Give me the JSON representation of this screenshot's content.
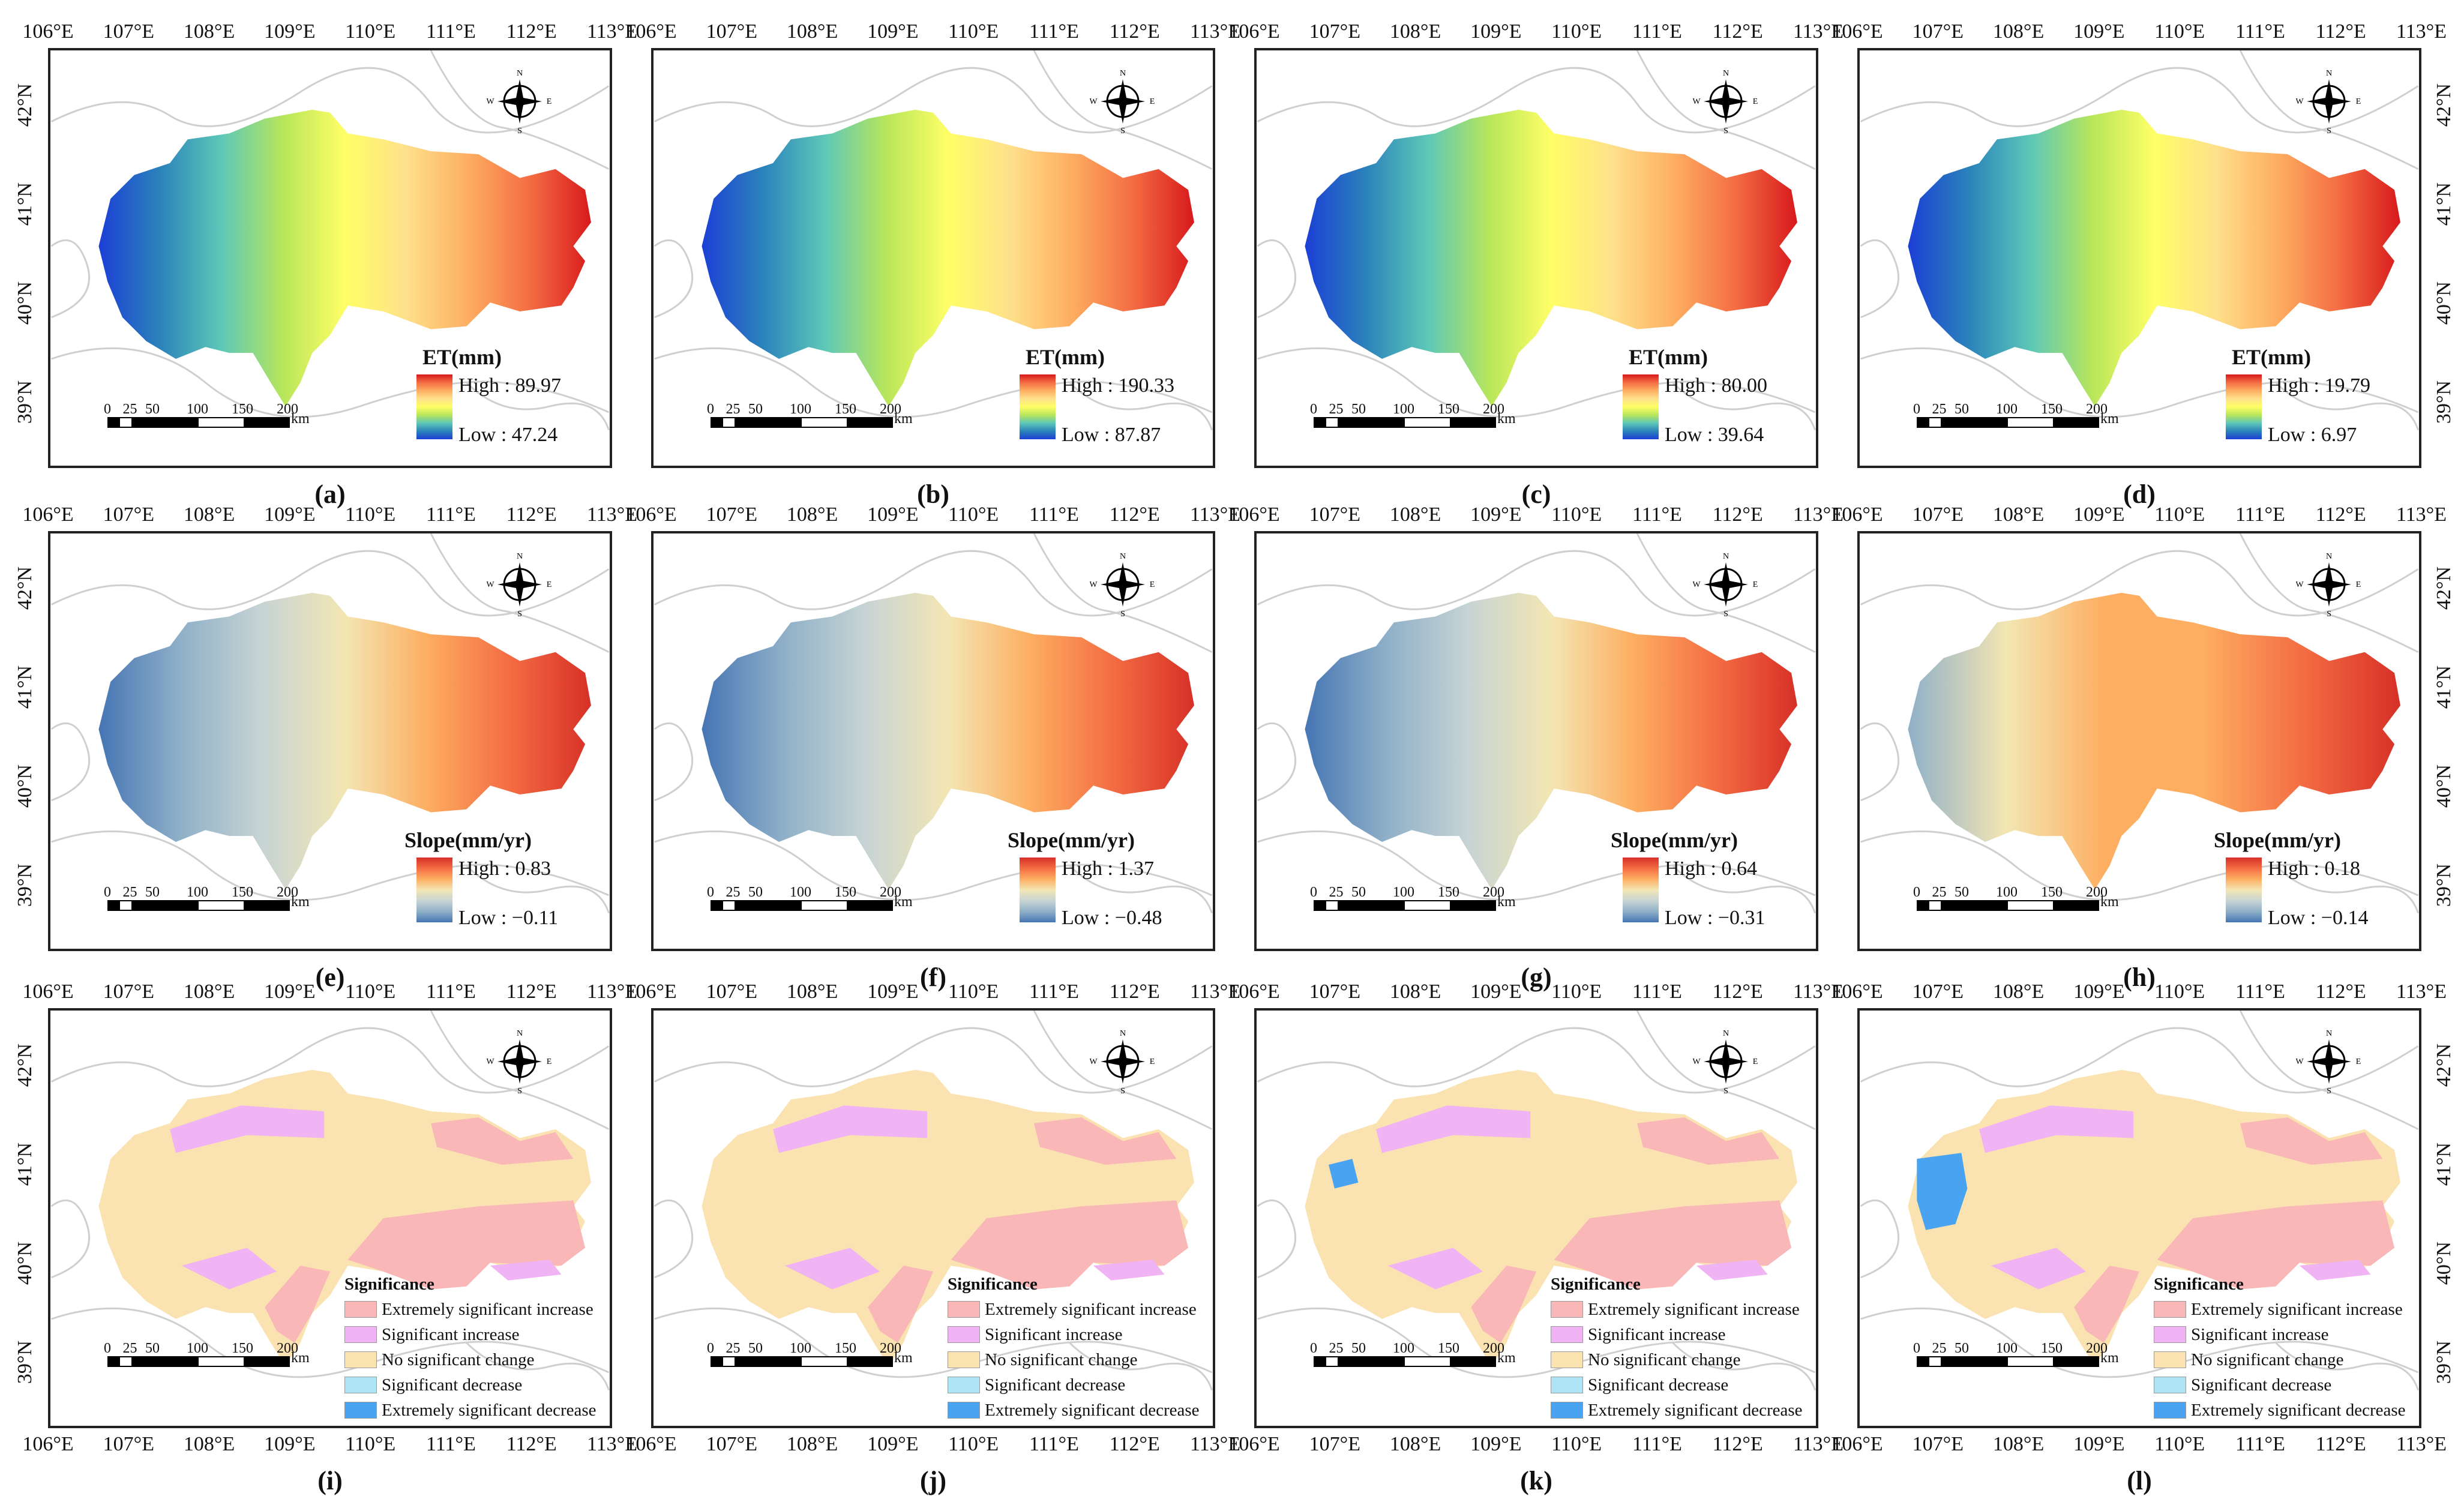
{
  "axes": {
    "lon_ticks": [
      "106°E",
      "107°E",
      "108°E",
      "109°E",
      "110°E",
      "111°E",
      "112°E",
      "113°E"
    ],
    "lat_ticks": [
      "42°N",
      "41°N",
      "40°N",
      "39°N"
    ]
  },
  "scale_bar": {
    "numbers": [
      "0",
      "25",
      "50",
      "100",
      "150",
      "200"
    ],
    "unit": "km"
  },
  "compass": {
    "n": "N",
    "s": "S",
    "e": "E",
    "w": "W"
  },
  "colors": {
    "et_ramp": [
      "#d7191c",
      "#f46d43",
      "#fdae61",
      "#fee08b",
      "#ffff66",
      "#b8e65a",
      "#5ec8b8",
      "#2b83ba",
      "#1c3fd6"
    ],
    "slope_ramp": [
      "#d73027",
      "#f46d43",
      "#fdae61",
      "#f3e6b3",
      "#c7d4d4",
      "#8fb0c8",
      "#4575b4"
    ],
    "sig": [
      "#f9b7b8",
      "#f0b3f3",
      "#fbe2b1",
      "#aee4f4",
      "#4aa3f0"
    ],
    "basemap_line": "#cfcfcf"
  },
  "panels": [
    {
      "id": "a",
      "caption": "(a)",
      "type": "et",
      "legend_title": "ET(mm)",
      "high": "High : 89.97",
      "low": "Low : 47.24",
      "side_ticks": "left"
    },
    {
      "id": "b",
      "caption": "(b)",
      "type": "et",
      "legend_title": "ET(mm)",
      "high": "High : 190.33",
      "low": "Low : 87.87",
      "side_ticks": "none"
    },
    {
      "id": "c",
      "caption": "(c)",
      "type": "et",
      "legend_title": "ET(mm)",
      "high": "High : 80.00",
      "low": "Low : 39.64",
      "side_ticks": "none"
    },
    {
      "id": "d",
      "caption": "(d)",
      "type": "et",
      "legend_title": "ET(mm)",
      "high": "High : 19.79",
      "low": "Low : 6.97",
      "side_ticks": "right"
    },
    {
      "id": "e",
      "caption": "(e)",
      "type": "slope",
      "legend_title": "Slope(mm/yr)",
      "high": "High : 0.83",
      "low": "Low : −0.11",
      "side_ticks": "left"
    },
    {
      "id": "f",
      "caption": "(f)",
      "type": "slope",
      "legend_title": "Slope(mm/yr)",
      "high": "High : 1.37",
      "low": "Low : −0.48",
      "side_ticks": "none"
    },
    {
      "id": "g",
      "caption": "(g)",
      "type": "slope",
      "legend_title": "Slope(mm/yr)",
      "high": "High : 0.64",
      "low": "Low : −0.31",
      "side_ticks": "none"
    },
    {
      "id": "h",
      "caption": "(h)",
      "type": "slope",
      "legend_title": "Slope(mm/yr)",
      "high": "High : 0.18",
      "low": "Low : −0.14",
      "side_ticks": "right"
    },
    {
      "id": "i",
      "caption": "(i)",
      "type": "sig",
      "legend_title": "Significance",
      "side_ticks": "left"
    },
    {
      "id": "j",
      "caption": "(j)",
      "type": "sig",
      "legend_title": "Significance",
      "side_ticks": "none"
    },
    {
      "id": "k",
      "caption": "(k)",
      "type": "sig",
      "legend_title": "Significance",
      "side_ticks": "none"
    },
    {
      "id": "l",
      "caption": "(l)",
      "type": "sig",
      "legend_title": "Significance",
      "side_ticks": "right"
    }
  ],
  "sig_legend": [
    "Extremely significant increase",
    "Significant increase",
    "No significant change",
    "Significant decrease",
    "Extremely significant decrease"
  ]
}
